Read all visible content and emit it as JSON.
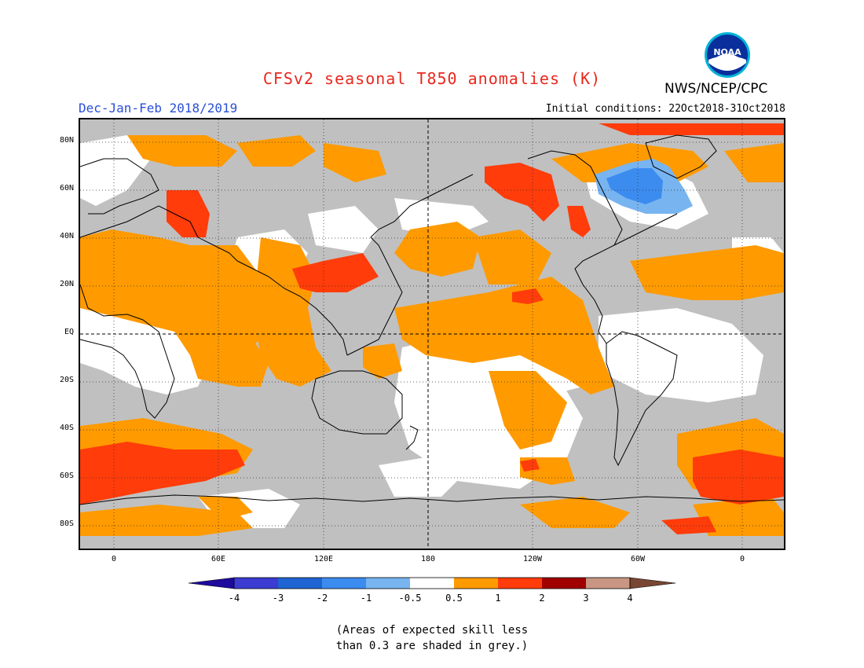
{
  "header": {
    "title": "CFSv2 seasonal T850 anomalies (K)",
    "season": "Dec-Jan-Feb 2018/2019",
    "initial_conditions": "Initial conditions: 22Oct2018-31Oct2018",
    "agency": "NWS/NCEP/CPC",
    "logo_text": "NOAA"
  },
  "map": {
    "lat_labels": [
      "80N",
      "60N",
      "40N",
      "20N",
      "EQ",
      "20S",
      "40S",
      "60S",
      "80S"
    ],
    "lon_labels": [
      "0",
      "60E",
      "120E",
      "180",
      "120W",
      "60W",
      "0"
    ]
  },
  "colorbar": {
    "labels": [
      "-4",
      "-3",
      "-2",
      "-1",
      "-0.5",
      "0.5",
      "1",
      "2",
      "3",
      "4"
    ],
    "colors": [
      "#1e0a9c",
      "#3c3cd2",
      "#1e64d2",
      "#3c8cf0",
      "#78b4f0",
      "#ffffff",
      "#ff9a00",
      "#ff3c0a",
      "#a00000",
      "#c89682",
      "#784632"
    ]
  },
  "note": {
    "line1": "(Areas of expected skill less",
    "line2": "than 0.3 are shaded in grey.)"
  }
}
